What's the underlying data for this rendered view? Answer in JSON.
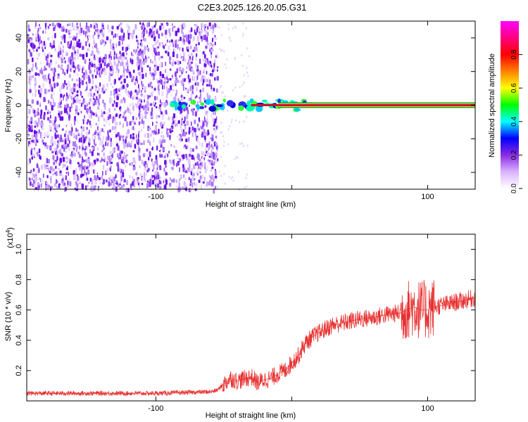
{
  "figure": {
    "title": "C2E3.2025.126.20.05.G31"
  },
  "colors": {
    "snr_line": "#e83030",
    "ridge_core": "#d0102a",
    "axis": "#000000"
  },
  "chart_data": [
    {
      "type": "heatmap",
      "xlabel": "Height of straight line (km)",
      "ylabel": "Frequency (Hz)",
      "xlim": [
        -195,
        135
      ],
      "ylim": [
        -50,
        50
      ],
      "xticks": [
        -100,
        0,
        100
      ],
      "xtick_labels": [
        "-100",
        "",
        "100"
      ],
      "yticks": [
        -40,
        -20,
        0,
        20,
        40
      ],
      "ytick_labels": [
        "-40",
        "-20",
        "0",
        "20",
        "40"
      ],
      "noise_region_x": [
        -195,
        -55
      ],
      "ridge": {
        "frequency": 0,
        "start_x": -90,
        "end_x": 135,
        "width_hz": 2
      },
      "colorbar": {
        "label": "Normalized spectral amplitude",
        "range": [
          0,
          1
        ],
        "ticks": [
          0.0,
          0.2,
          0.4,
          0.6,
          0.8
        ],
        "tick_labels": [
          "0.0",
          "0.2",
          "0.4",
          "0.6",
          "0.8"
        ],
        "stops": [
          "#ffffff",
          "#d9b3ff",
          "#8a2be2",
          "#0000ff",
          "#00ffff",
          "#00ff00",
          "#ffff00",
          "#ff8000",
          "#ff0000",
          "#ff0080",
          "#ff00ff"
        ]
      }
    },
    {
      "type": "line",
      "xlabel": "Height of straight line (km)",
      "ylabel": "SNR (10 * v/v)",
      "scale_label": "(x10",
      "scale_exponent": "4",
      "scale_close": ")",
      "xlim": [
        -195,
        135
      ],
      "ylim": [
        0,
        1.1
      ],
      "xticks": [
        -100,
        0,
        100
      ],
      "xtick_labels": [
        "-100",
        "",
        "100"
      ],
      "yticks": [
        0.2,
        0.4,
        0.6,
        0.8,
        1.0
      ],
      "ytick_labels": [
        "0.2",
        "0.4",
        "0.6",
        "0.8",
        "1.0"
      ],
      "series": [
        {
          "x": [
            -195,
            -180,
            -160,
            -140,
            -120,
            -100,
            -80,
            -60,
            -55,
            -45,
            -40,
            -30,
            -25,
            -20,
            -15,
            -10,
            -5,
            0,
            5,
            10,
            15,
            20,
            30,
            40,
            50,
            60,
            70,
            80,
            85,
            90,
            95,
            100,
            105,
            110,
            120,
            130,
            135
          ],
          "values": [
            0.05,
            0.05,
            0.05,
            0.05,
            0.05,
            0.05,
            0.055,
            0.06,
            0.07,
            0.15,
            0.13,
            0.16,
            0.12,
            0.14,
            0.15,
            0.18,
            0.2,
            0.25,
            0.3,
            0.38,
            0.42,
            0.45,
            0.5,
            0.52,
            0.54,
            0.55,
            0.57,
            0.58,
            0.6,
            0.62,
            0.6,
            0.6,
            0.62,
            0.63,
            0.65,
            0.67,
            0.68
          ]
        }
      ]
    }
  ]
}
